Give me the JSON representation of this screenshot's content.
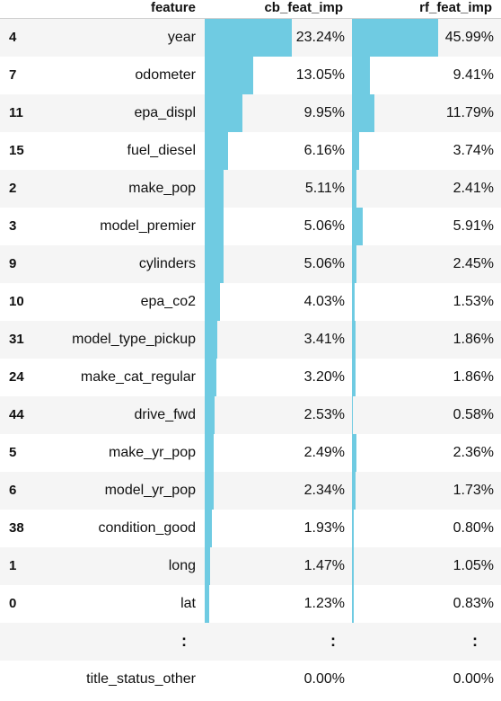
{
  "table": {
    "columns": [
      "feature",
      "cb_feat_imp",
      "rf_feat_imp"
    ],
    "bar_color": "#6fcbe2",
    "rows": [
      {
        "index": "4",
        "feature": "year",
        "cb_feat_imp": "23.24%",
        "rf_feat_imp": "45.99%",
        "cb_value": 23.24,
        "rf_value": 45.99
      },
      {
        "index": "7",
        "feature": "odometer",
        "cb_feat_imp": "13.05%",
        "rf_feat_imp": "9.41%",
        "cb_value": 13.05,
        "rf_value": 9.41
      },
      {
        "index": "11",
        "feature": "epa_displ",
        "cb_feat_imp": "9.95%",
        "rf_feat_imp": "11.79%",
        "cb_value": 9.95,
        "rf_value": 11.79
      },
      {
        "index": "15",
        "feature": "fuel_diesel",
        "cb_feat_imp": "6.16%",
        "rf_feat_imp": "3.74%",
        "cb_value": 6.16,
        "rf_value": 3.74
      },
      {
        "index": "2",
        "feature": "make_pop",
        "cb_feat_imp": "5.11%",
        "rf_feat_imp": "2.41%",
        "cb_value": 5.11,
        "rf_value": 2.41
      },
      {
        "index": "3",
        "feature": "model_premier",
        "cb_feat_imp": "5.06%",
        "rf_feat_imp": "5.91%",
        "cb_value": 5.06,
        "rf_value": 5.91
      },
      {
        "index": "9",
        "feature": "cylinders",
        "cb_feat_imp": "5.06%",
        "rf_feat_imp": "2.45%",
        "cb_value": 5.06,
        "rf_value": 2.45
      },
      {
        "index": "10",
        "feature": "epa_co2",
        "cb_feat_imp": "4.03%",
        "rf_feat_imp": "1.53%",
        "cb_value": 4.03,
        "rf_value": 1.53
      },
      {
        "index": "31",
        "feature": "model_type_pickup",
        "cb_feat_imp": "3.41%",
        "rf_feat_imp": "1.86%",
        "cb_value": 3.41,
        "rf_value": 1.86
      },
      {
        "index": "24",
        "feature": "make_cat_regular",
        "cb_feat_imp": "3.20%",
        "rf_feat_imp": "1.86%",
        "cb_value": 3.2,
        "rf_value": 1.86
      },
      {
        "index": "44",
        "feature": "drive_fwd",
        "cb_feat_imp": "2.53%",
        "rf_feat_imp": "0.58%",
        "cb_value": 2.53,
        "rf_value": 0.58
      },
      {
        "index": "5",
        "feature": "make_yr_pop",
        "cb_feat_imp": "2.49%",
        "rf_feat_imp": "2.36%",
        "cb_value": 2.49,
        "rf_value": 2.36
      },
      {
        "index": "6",
        "feature": "model_yr_pop",
        "cb_feat_imp": "2.34%",
        "rf_feat_imp": "1.73%",
        "cb_value": 2.34,
        "rf_value": 1.73
      },
      {
        "index": "38",
        "feature": "condition_good",
        "cb_feat_imp": "1.93%",
        "rf_feat_imp": "0.80%",
        "cb_value": 1.93,
        "rf_value": 0.8
      },
      {
        "index": "1",
        "feature": "long",
        "cb_feat_imp": "1.47%",
        "rf_feat_imp": "1.05%",
        "cb_value": 1.47,
        "rf_value": 1.05
      },
      {
        "index": "0",
        "feature": "lat",
        "cb_feat_imp": "1.23%",
        "rf_feat_imp": "0.83%",
        "cb_value": 1.23,
        "rf_value": 0.83
      }
    ],
    "ellipsis": [
      ":",
      ":",
      ":"
    ],
    "last_row": {
      "index": "",
      "feature": "title_status_other",
      "cb_feat_imp": "0.00%",
      "rf_feat_imp": "0.00%",
      "cb_value": 0.0,
      "rf_value": 0.0
    }
  }
}
